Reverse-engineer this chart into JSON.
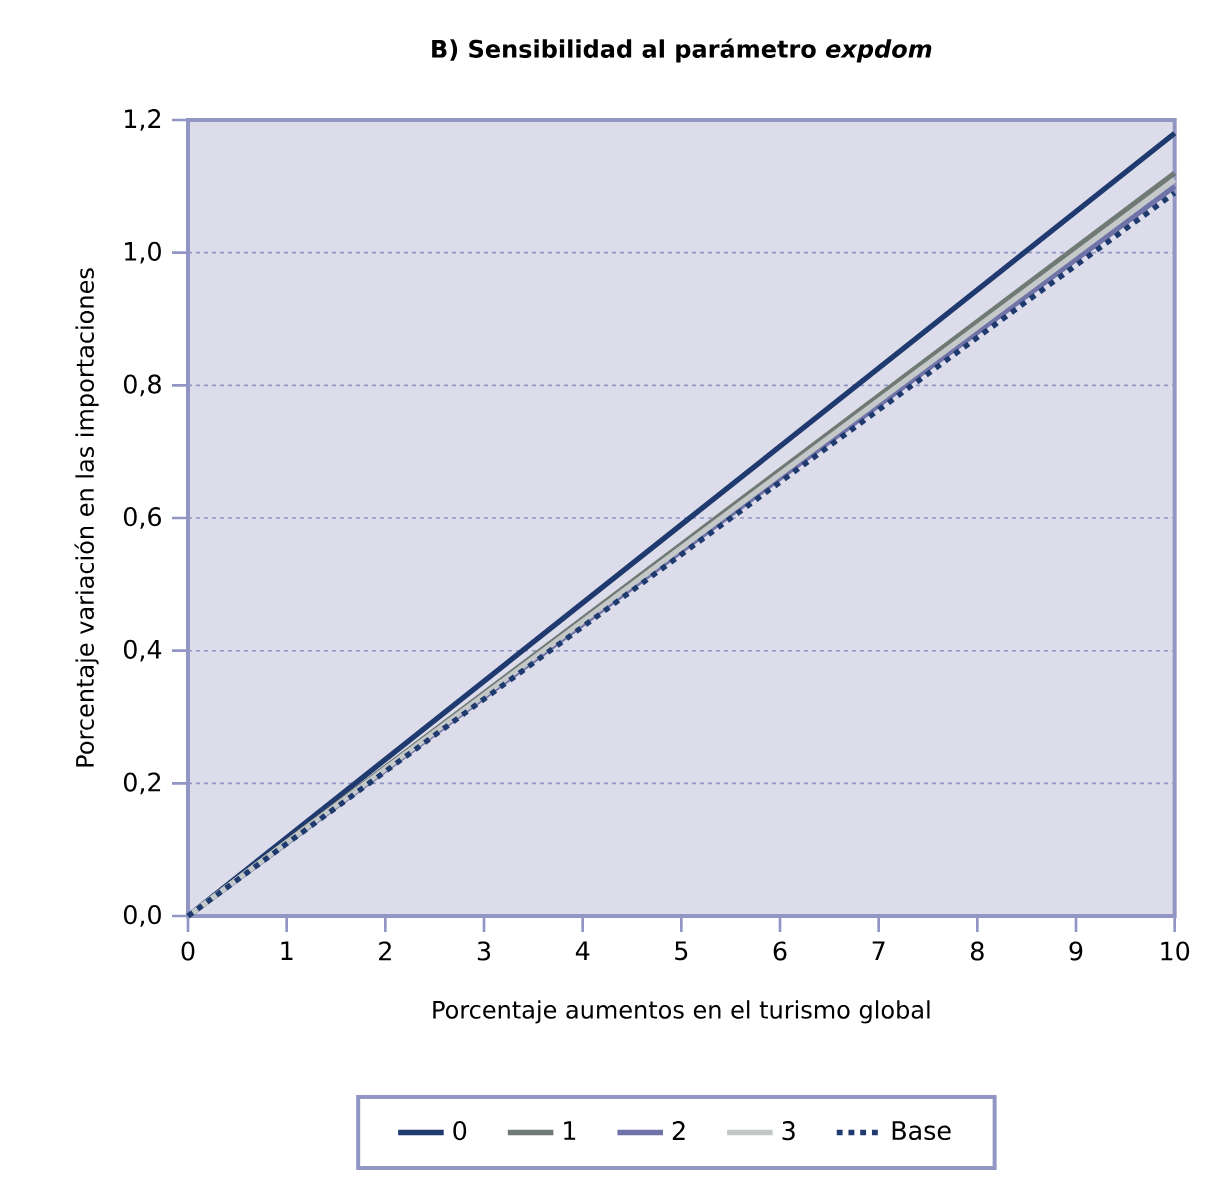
{
  "chart_data": {
    "type": "line",
    "title": "B) Sensibilidad al parámetro *expdom*",
    "xlabel": "Porcentaje aumentos en el turismo global",
    "ylabel": "Porcentaje variación en las importaciones",
    "x": [
      0,
      5,
      10
    ],
    "series": [
      {
        "name": "0",
        "color": "#1f3a6e",
        "values": [
          0,
          0.59,
          1.18
        ],
        "line_style": "solid"
      },
      {
        "name": "1",
        "color": "#6f7a74",
        "values": [
          0,
          0.56,
          1.12
        ],
        "line_style": "solid"
      },
      {
        "name": "2",
        "color": "#6f73a8",
        "values": [
          0,
          0.55,
          1.1
        ],
        "line_style": "solid"
      },
      {
        "name": "3",
        "color": "#c4c8c8",
        "values": [
          0,
          0.555,
          1.11
        ],
        "line_style": "solid"
      },
      {
        "name": "Base",
        "color": "#1f3a6e",
        "values": [
          0,
          0.545,
          1.09
        ],
        "line_style": "dotted"
      }
    ],
    "xlim": [
      0,
      10
    ],
    "ylim": [
      0,
      1.2
    ],
    "xticks": [
      0,
      1,
      2,
      3,
      4,
      5,
      6,
      7,
      8,
      9,
      10
    ],
    "yticks": [
      {
        "value": 0,
        "label": "0,0"
      },
      {
        "value": 0.2,
        "label": "0,2"
      },
      {
        "value": 0.4,
        "label": "0,4"
      },
      {
        "value": 0.6,
        "label": "0,6"
      },
      {
        "value": 0.8,
        "label": "0,8"
      },
      {
        "value": 1.0,
        "label": "1,0"
      },
      {
        "value": 1.2,
        "label": "1,2"
      }
    ],
    "grid": "y",
    "legend": "bottom",
    "marker": "none"
  }
}
